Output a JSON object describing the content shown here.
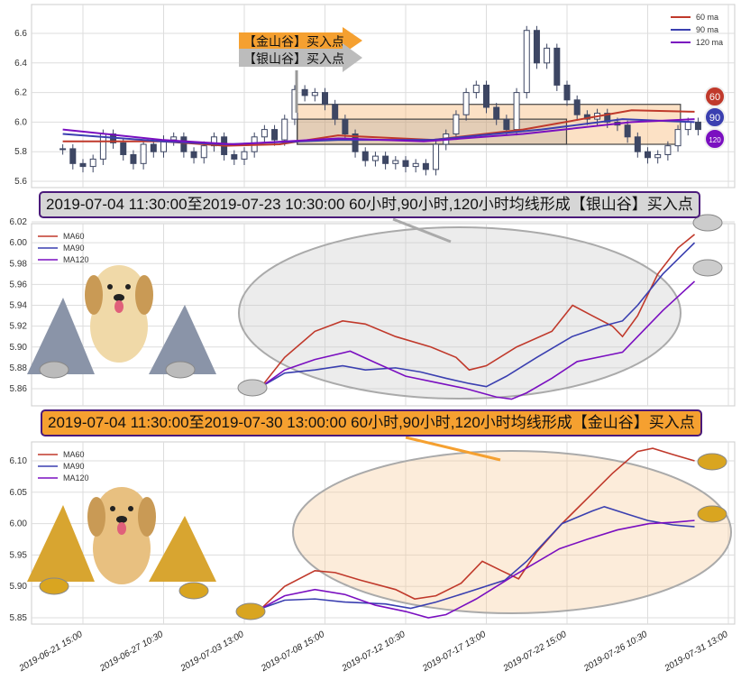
{
  "colors": {
    "ma60": "#c0392b",
    "ma90": "#3a3fb0",
    "ma120": "#7a0fc0",
    "candle": "#3d4663",
    "gold": "#f5a030",
    "silver": "#bcbcbc"
  },
  "top_labels": {
    "gold_arrow": "【金山谷】买入点",
    "silver_arrow": "【银山谷】买入点",
    "badge_60": "60",
    "badge_90": "90",
    "badge_120": "120"
  },
  "banners": {
    "silver": "2019-07-04 11:30:00至2019-07-23 10:30:00 60小时,90小时,120小时均线形成【银山谷】买入点",
    "gold": "2019-07-04 11:30:00至2019-07-30 13:00:00 60小时,90小时,120小时均线形成【金山谷】买入点"
  },
  "chart_data": [
    {
      "type": "candlestick",
      "title": "",
      "legend": [
        "60 ma",
        "90 ma",
        "120 ma"
      ],
      "legend_placement": "top-right",
      "yticks": [
        "5.6",
        "5.8",
        "6.0",
        "6.2",
        "6.4",
        "6.6"
      ],
      "ylim": [
        5.56,
        6.8
      ],
      "candles_idx_open_close": [
        [
          -4,
          5.82,
          5.82
        ],
        [
          -2,
          5.82,
          5.72
        ],
        [
          0,
          5.72,
          5.7
        ],
        [
          2,
          5.7,
          5.75
        ],
        [
          4,
          5.75,
          5.92
        ],
        [
          6,
          5.92,
          5.86
        ],
        [
          8,
          5.86,
          5.78
        ],
        [
          10,
          5.78,
          5.72
        ],
        [
          12,
          5.72,
          5.85
        ],
        [
          14,
          5.85,
          5.8
        ],
        [
          16,
          5.8,
          5.88
        ],
        [
          18,
          5.88,
          5.9
        ],
        [
          20,
          5.9,
          5.8
        ],
        [
          22,
          5.8,
          5.76
        ],
        [
          24,
          5.76,
          5.84
        ],
        [
          26,
          5.84,
          5.9
        ],
        [
          28,
          5.9,
          5.78
        ],
        [
          30,
          5.78,
          5.75
        ],
        [
          32,
          5.75,
          5.8
        ],
        [
          34,
          5.8,
          5.9
        ],
        [
          36,
          5.9,
          5.95
        ],
        [
          38,
          5.95,
          5.88
        ],
        [
          40,
          5.88,
          6.02
        ],
        [
          42,
          6.02,
          6.22
        ],
        [
          44,
          6.22,
          6.18
        ],
        [
          46,
          6.18,
          6.2
        ],
        [
          48,
          6.2,
          6.12
        ],
        [
          50,
          6.12,
          6.02
        ],
        [
          52,
          6.02,
          5.92
        ],
        [
          54,
          5.92,
          5.8
        ],
        [
          56,
          5.8,
          5.74
        ],
        [
          58,
          5.74,
          5.77
        ],
        [
          60,
          5.77,
          5.72
        ],
        [
          62,
          5.72,
          5.74
        ],
        [
          64,
          5.74,
          5.7
        ],
        [
          66,
          5.7,
          5.72
        ],
        [
          68,
          5.72,
          5.68
        ],
        [
          70,
          5.68,
          5.85
        ],
        [
          72,
          5.85,
          5.92
        ],
        [
          74,
          5.92,
          6.05
        ],
        [
          76,
          6.05,
          6.2
        ],
        [
          78,
          6.2,
          6.25
        ],
        [
          80,
          6.25,
          6.1
        ],
        [
          82,
          6.1,
          6.02
        ],
        [
          84,
          6.02,
          5.95
        ],
        [
          86,
          5.95,
          6.2
        ],
        [
          88,
          6.2,
          6.62
        ],
        [
          90,
          6.62,
          6.4
        ],
        [
          92,
          6.4,
          6.5
        ],
        [
          94,
          6.5,
          6.25
        ],
        [
          96,
          6.25,
          6.15
        ],
        [
          98,
          6.15,
          6.05
        ],
        [
          100,
          6.05,
          6.02
        ],
        [
          102,
          6.02,
          6.06
        ],
        [
          104,
          6.06,
          6.0
        ],
        [
          106,
          6.0,
          5.98
        ],
        [
          108,
          5.98,
          5.9
        ],
        [
          110,
          5.9,
          5.8
        ],
        [
          112,
          5.8,
          5.76
        ],
        [
          114,
          5.76,
          5.78
        ],
        [
          116,
          5.78,
          5.84
        ],
        [
          118,
          5.84,
          5.95
        ],
        [
          120,
          5.95,
          6.0
        ],
        [
          122,
          6.0,
          5.95
        ]
      ],
      "series": [
        {
          "name": "60 ma",
          "points": [
            [
              -4,
              5.87
            ],
            [
              15.7,
              5.87
            ],
            [
              28.3,
              5.84
            ],
            [
              39,
              5.85
            ],
            [
              50.6,
              5.91
            ],
            [
              69.4,
              5.88
            ],
            [
              87.3,
              5.95
            ],
            [
              108.8,
              6.08
            ],
            [
              121.3,
              6.07
            ]
          ]
        },
        {
          "name": "90 ma",
          "points": [
            [
              -4,
              5.92
            ],
            [
              15.7,
              5.87
            ],
            [
              28.3,
              5.85
            ],
            [
              50.6,
              5.88
            ],
            [
              69.4,
              5.88
            ],
            [
              90.9,
              5.95
            ],
            [
              107,
              6.02
            ],
            [
              121.3,
              6.0
            ]
          ]
        },
        {
          "name": "120 ma",
          "points": [
            [
              -4,
              5.95
            ],
            [
              15.7,
              5.88
            ],
            [
              30,
              5.85
            ],
            [
              50.6,
              5.89
            ],
            [
              67.6,
              5.87
            ],
            [
              87.3,
              5.92
            ],
            [
              108.8,
              6.0
            ],
            [
              121.3,
              6.02
            ]
          ]
        }
      ],
      "zones": [
        {
          "name": "gold",
          "x": [
            42.5,
            118.5
          ],
          "y": [
            5.85,
            6.12
          ]
        },
        {
          "name": "silver",
          "x": [
            42.5,
            95.9
          ],
          "y": [
            5.85,
            6.02
          ]
        }
      ]
    },
    {
      "type": "line",
      "legend": [
        "MA60",
        "MA90",
        "MA120"
      ],
      "legend_placement": "top-left",
      "yticks": [
        "5.86",
        "5.88",
        "5.90",
        "5.92",
        "5.94",
        "5.96",
        "5.98",
        "6.00",
        "6.02"
      ],
      "series": [
        {
          "name": "MA60",
          "points": [
            [
              35.4,
              5.862
            ],
            [
              40,
              5.89
            ],
            [
              46,
              5.915
            ],
            [
              51.5,
              5.925
            ],
            [
              56,
              5.922
            ],
            [
              62,
              5.91
            ],
            [
              69,
              5.9
            ],
            [
              74,
              5.89
            ],
            [
              76.6,
              5.878
            ],
            [
              80,
              5.882
            ],
            [
              86,
              5.9
            ],
            [
              93,
              5.915
            ],
            [
              97.1,
              5.94
            ],
            [
              101,
              5.93
            ],
            [
              105,
              5.92
            ],
            [
              107,
              5.91
            ],
            [
              110,
              5.93
            ],
            [
              114,
              5.97
            ],
            [
              118,
              5.995
            ],
            [
              121.3,
              6.008
            ]
          ]
        },
        {
          "name": "MA90",
          "points": [
            [
              35.4,
              5.862
            ],
            [
              40,
              5.875
            ],
            [
              46,
              5.878
            ],
            [
              51.5,
              5.882
            ],
            [
              56,
              5.878
            ],
            [
              62,
              5.88
            ],
            [
              67,
              5.876
            ],
            [
              72,
              5.87
            ],
            [
              76.6,
              5.865
            ],
            [
              80,
              5.862
            ],
            [
              84,
              5.872
            ],
            [
              90,
              5.89
            ],
            [
              97,
              5.91
            ],
            [
              103,
              5.92
            ],
            [
              107,
              5.925
            ],
            [
              110,
              5.94
            ],
            [
              115,
              5.97
            ],
            [
              121.3,
              6.0
            ]
          ]
        },
        {
          "name": "MA120",
          "points": [
            [
              35.4,
              5.862
            ],
            [
              40,
              5.878
            ],
            [
              46,
              5.888
            ],
            [
              53,
              5.896
            ],
            [
              58,
              5.885
            ],
            [
              64,
              5.872
            ],
            [
              70,
              5.866
            ],
            [
              76,
              5.86
            ],
            [
              82,
              5.852
            ],
            [
              85,
              5.85
            ],
            [
              88,
              5.856
            ],
            [
              93,
              5.87
            ],
            [
              98,
              5.886
            ],
            [
              104,
              5.892
            ],
            [
              107,
              5.895
            ],
            [
              110,
              5.91
            ],
            [
              115,
              5.935
            ],
            [
              121.3,
              5.963
            ]
          ]
        }
      ]
    },
    {
      "type": "line",
      "legend": [
        "MA60",
        "MA90",
        "MA120"
      ],
      "legend_placement": "top-left",
      "yticks": [
        "5.85",
        "5.90",
        "5.95",
        "6.00",
        "6.05",
        "6.10"
      ],
      "xticks": [
        "2019-06-21 15:00",
        "2019-06-27 10:30",
        "2019-07-03 13:00",
        "2019-07-08 15:00",
        "2019-07-12 10:30",
        "2019-07-17 13:00",
        "2019-07-22 15:00",
        "2019-07-26 10:30",
        "2019-07-31 13:00"
      ],
      "series": [
        {
          "name": "MA60",
          "points": [
            [
              35.4,
              5.865
            ],
            [
              40,
              5.9
            ],
            [
              46,
              5.925
            ],
            [
              50,
              5.922
            ],
            [
              55,
              5.91
            ],
            [
              62,
              5.895
            ],
            [
              65.8,
              5.88
            ],
            [
              70,
              5.885
            ],
            [
              75,
              5.905
            ],
            [
              79.2,
              5.94
            ],
            [
              83,
              5.925
            ],
            [
              86.4,
              5.912
            ],
            [
              90,
              5.955
            ],
            [
              95,
              6.0
            ],
            [
              100,
              6.04
            ],
            [
              105,
              6.08
            ],
            [
              110,
              6.115
            ],
            [
              113,
              6.12
            ],
            [
              117,
              6.11
            ],
            [
              121.3,
              6.1
            ]
          ]
        },
        {
          "name": "MA90",
          "points": [
            [
              35.4,
              5.865
            ],
            [
              40,
              5.878
            ],
            [
              46,
              5.88
            ],
            [
              52,
              5.875
            ],
            [
              60,
              5.872
            ],
            [
              65,
              5.865
            ],
            [
              70,
              5.875
            ],
            [
              76,
              5.89
            ],
            [
              83.7,
              5.91
            ],
            [
              88,
              5.94
            ],
            [
              95,
              6.0
            ],
            [
              101,
              6.02
            ],
            [
              103.4,
              6.027
            ],
            [
              108,
              6.015
            ],
            [
              112,
              6.005
            ],
            [
              117,
              5.998
            ],
            [
              121.3,
              5.995
            ]
          ]
        },
        {
          "name": "MA120",
          "points": [
            [
              35.4,
              5.865
            ],
            [
              40,
              5.885
            ],
            [
              46,
              5.895
            ],
            [
              52,
              5.887
            ],
            [
              58,
              5.87
            ],
            [
              64,
              5.86
            ],
            [
              68.5,
              5.85
            ],
            [
              72,
              5.855
            ],
            [
              78,
              5.88
            ],
            [
              85,
              5.915
            ],
            [
              94.5,
              5.96
            ],
            [
              100,
              5.975
            ],
            [
              106,
              5.99
            ],
            [
              112.3,
              6.0
            ],
            [
              117,
              6.002
            ],
            [
              121.3,
              6.005
            ]
          ]
        }
      ]
    }
  ]
}
